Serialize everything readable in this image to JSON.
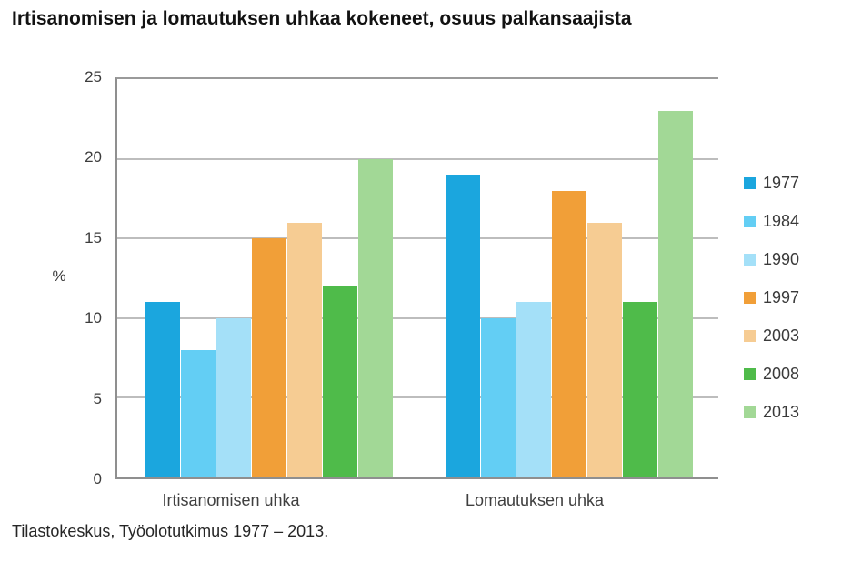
{
  "chart_data": {
    "type": "bar",
    "title": "Irtisanomisen ja lomautuksen uhkaa kokeneet, osuus palkansaajista",
    "categories": [
      "Irtisanomisen uhka",
      "Lomautuksen uhka"
    ],
    "series": [
      {
        "name": "1977",
        "color": "#1ba6de",
        "values": [
          11,
          19
        ]
      },
      {
        "name": "1984",
        "color": "#63cef4",
        "values": [
          8,
          10
        ]
      },
      {
        "name": "1990",
        "color": "#a4e0f8",
        "values": [
          10,
          11
        ]
      },
      {
        "name": "1997",
        "color": "#f19f38",
        "values": [
          15,
          18
        ]
      },
      {
        "name": "2003",
        "color": "#f6cc93",
        "values": [
          16,
          16
        ]
      },
      {
        "name": "2008",
        "color": "#4fbb4a",
        "values": [
          12,
          11
        ]
      },
      {
        "name": "2013",
        "color": "#a2d896",
        "values": [
          20,
          23
        ]
      }
    ],
    "xlabel": "",
    "ylabel": "%",
    "ylim": [
      0,
      25
    ],
    "yticks": [
      0,
      5,
      10,
      15,
      20,
      25
    ],
    "grid": true,
    "legend_position": "right"
  },
  "source_note": "Tilastokeskus, Työolotutkimus 1977 – 2013.",
  "colors": {
    "axis": "#8f8f8f",
    "grid": "#bdbdbd",
    "tick_text": "#3c3c3c",
    "title_text": "#121212"
  }
}
